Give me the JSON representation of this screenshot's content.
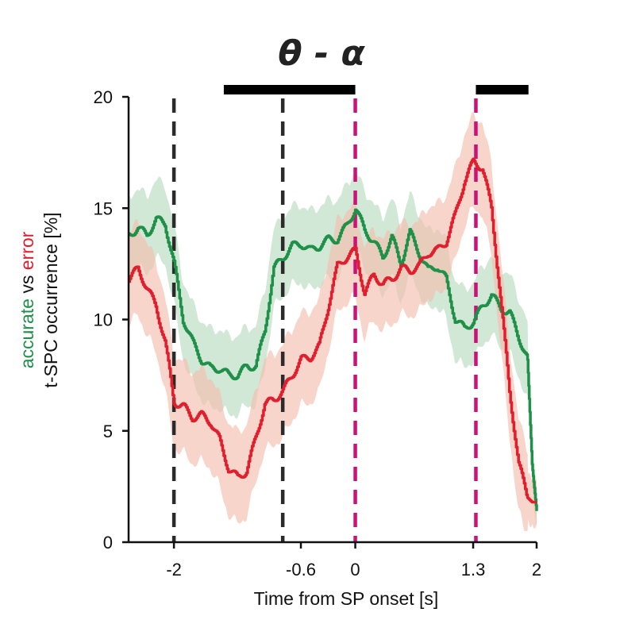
{
  "chart_data": {
    "type": "line",
    "title": "θ - α",
    "xlabel": "Time from SP onset [s]",
    "ylabel": {
      "prefix_accurate": "accurate",
      "vs": " vs ",
      "error": "error",
      "line2": "t-SPC occurrence [%]"
    },
    "xlim": [
      -2.5,
      2.0
    ],
    "ylim": [
      0,
      20
    ],
    "xticks": [
      {
        "value": -2.0,
        "label": "-2"
      },
      {
        "value": -0.6,
        "label": "-0.6"
      },
      {
        "value": 0.0,
        "label": "0"
      },
      {
        "value": 1.3,
        "label": "1.3"
      },
      {
        "value": 2.0,
        "label": "2"
      }
    ],
    "yticks": [
      {
        "value": 0,
        "label": "0"
      },
      {
        "value": 5,
        "label": "5"
      },
      {
        "value": 10,
        "label": "10"
      },
      {
        "value": 15,
        "label": "15"
      },
      {
        "value": 20,
        "label": "20"
      }
    ],
    "vlines": [
      {
        "x": -2.0,
        "color": "#2b2b2b"
      },
      {
        "x": -0.8,
        "color": "#2b2b2b"
      },
      {
        "x": 0.0,
        "color": "#cc1177"
      },
      {
        "x": 1.33,
        "color": "#cc1177"
      }
    ],
    "significance_bars": [
      {
        "x0": -1.45,
        "x1": 0.0
      },
      {
        "x0": 1.33,
        "x1": 1.91
      }
    ],
    "colors": {
      "accurate": "#1e9048",
      "error": "#e01e2e",
      "accurate_band": "#b8dcc0",
      "error_band": "#f5bfae"
    },
    "series": [
      {
        "name": "accurate",
        "color": "#1e9048",
        "x": [
          -2.5,
          -2.4,
          -2.3,
          -2.2,
          -2.1,
          -2.0,
          -1.9,
          -1.8,
          -1.7,
          -1.6,
          -1.5,
          -1.4,
          -1.3,
          -1.2,
          -1.1,
          -1.0,
          -0.9,
          -0.8,
          -0.7,
          -0.6,
          -0.5,
          -0.4,
          -0.3,
          -0.2,
          -0.1,
          0.0,
          0.1,
          0.2,
          0.3,
          0.4,
          0.5,
          0.6,
          0.7,
          0.8,
          0.9,
          1.0,
          1.1,
          1.2,
          1.3,
          1.4,
          1.5,
          1.6,
          1.7,
          1.8,
          1.9,
          1.95,
          2.0
        ],
        "y": [
          13.8,
          14.1,
          13.8,
          14.5,
          14.3,
          12.5,
          10.0,
          9.0,
          8.2,
          7.8,
          7.8,
          7.5,
          7.5,
          7.9,
          7.9,
          9.5,
          12.3,
          12.8,
          13.3,
          13.4,
          13.1,
          13.3,
          13.6,
          13.6,
          14.2,
          15.0,
          14.0,
          13.5,
          12.8,
          13.7,
          12.5,
          13.9,
          13.0,
          12.2,
          12.4,
          11.8,
          10.0,
          9.6,
          9.9,
          10.6,
          11.1,
          10.5,
          10.3,
          9.2,
          8.2,
          3.5,
          1.4
        ],
        "band": 1.6
      },
      {
        "name": "error",
        "color": "#e01e2e",
        "x": [
          -2.5,
          -2.4,
          -2.3,
          -2.2,
          -2.1,
          -2.0,
          -1.9,
          -1.8,
          -1.7,
          -1.6,
          -1.5,
          -1.4,
          -1.3,
          -1.2,
          -1.1,
          -1.0,
          -0.9,
          -0.8,
          -0.7,
          -0.6,
          -0.5,
          -0.4,
          -0.3,
          -0.2,
          -0.1,
          0.0,
          0.1,
          0.2,
          0.3,
          0.4,
          0.5,
          0.6,
          0.7,
          0.8,
          0.9,
          1.0,
          1.1,
          1.2,
          1.3,
          1.4,
          1.5,
          1.6,
          1.7,
          1.8,
          1.9,
          1.95,
          2.0
        ],
        "y": [
          11.8,
          12.3,
          11.4,
          10.6,
          9.0,
          6.3,
          6.1,
          5.6,
          5.7,
          5.4,
          4.6,
          3.3,
          2.9,
          3.2,
          4.7,
          6.2,
          6.4,
          6.8,
          7.5,
          8.2,
          8.3,
          8.8,
          10.6,
          12.4,
          12.8,
          13.1,
          11.2,
          12.0,
          11.6,
          11.8,
          12.3,
          12.2,
          12.4,
          13.0,
          13.1,
          13.5,
          14.7,
          16.2,
          17.1,
          16.8,
          15.0,
          11.0,
          6.8,
          3.5,
          2.0,
          1.8,
          1.8
        ],
        "band": 1.9
      }
    ]
  }
}
